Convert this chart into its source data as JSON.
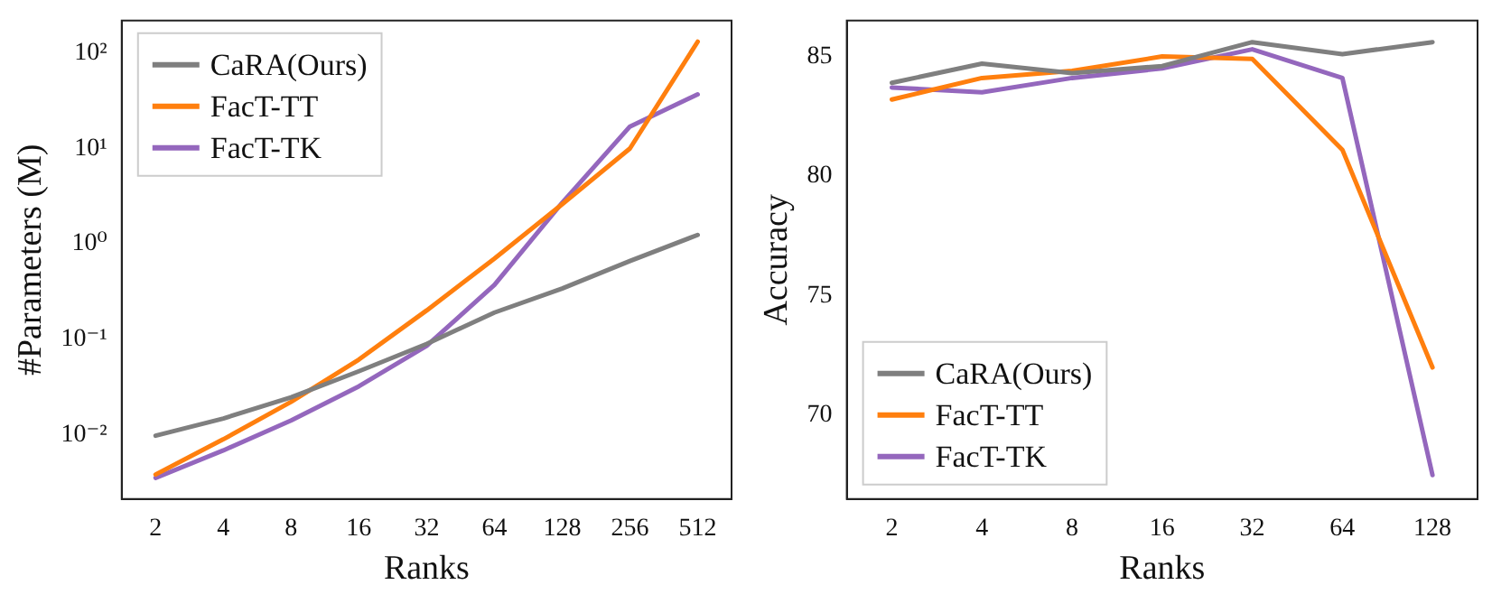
{
  "chart_data": [
    {
      "type": "line",
      "xlabel": "Ranks",
      "ylabel": "#Parameters (M)",
      "categories": [
        "2",
        "4",
        "8",
        "16",
        "32",
        "64",
        "128",
        "256",
        "512"
      ],
      "series": [
        {
          "name": "CaRA(Ours)",
          "color": "#7f7f7f",
          "values": [
            0.0097,
            0.0147,
            0.0245,
            0.046,
            0.089,
            0.19,
            0.34,
            0.66,
            1.24
          ]
        },
        {
          "name": "FacT-TT",
          "color": "#ff7f0e",
          "values": [
            0.0038,
            0.0089,
            0.022,
            0.061,
            0.2,
            0.7,
            2.6,
            10,
            132
          ]
        },
        {
          "name": "FacT-TK",
          "color": "#9467bd",
          "values": [
            0.0035,
            0.0068,
            0.014,
            0.032,
            0.085,
            0.37,
            2.7,
            17,
            37
          ]
        }
      ],
      "log": "y",
      "ylim": [
        0.0021,
        220
      ],
      "yticks": [
        {
          "value": 0.01,
          "label": "10⁻²"
        },
        {
          "value": 0.1,
          "label": "10⁻¹"
        },
        {
          "value": 1,
          "label": "10⁰"
        },
        {
          "value": 10,
          "label": "10¹"
        },
        {
          "value": 100,
          "label": "10²"
        }
      ],
      "grid": false,
      "legend": "top left",
      "marker": "none",
      "line_style": "solid"
    },
    {
      "type": "line",
      "xlabel": "Ranks",
      "ylabel": "Accuracy",
      "categories": [
        "2",
        "4",
        "8",
        "16",
        "32",
        "64",
        "128"
      ],
      "series": [
        {
          "name": "CaRA(Ours)",
          "color": "#7f7f7f",
          "values": [
            83.9,
            84.7,
            84.3,
            84.6,
            85.6,
            85.1,
            85.6
          ]
        },
        {
          "name": "FacT-TT",
          "color": "#ff7f0e",
          "values": [
            83.2,
            84.1,
            84.4,
            85.0,
            84.9,
            81.1,
            72.0
          ]
        },
        {
          "name": "FacT-TK",
          "color": "#9467bd",
          "values": [
            83.7,
            83.5,
            84.1,
            84.5,
            85.3,
            84.1,
            67.5
          ]
        }
      ],
      "ylim": [
        66.5,
        86.5
      ],
      "yticks": [
        70,
        75,
        80,
        85
      ],
      "grid": false,
      "legend": "bottom left",
      "marker": "none",
      "line_style": "solid"
    }
  ]
}
